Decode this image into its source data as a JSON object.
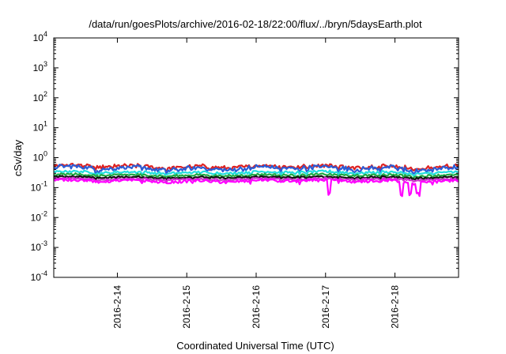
{
  "chart_data": {
    "type": "line",
    "title": "/data/run/goesPlots/archive/2016-02-18/22:00/flux/../bryn/5daysEarth.plot",
    "xlabel": "Coordinated Universal Time (UTC)",
    "ylabel": "cSv/day",
    "yscale": "log",
    "ylim": [
      0.0001,
      10000
    ],
    "xlim": [
      "2016-02-13 02:00",
      "2016-02-18 22:00"
    ],
    "grid": false,
    "y_ticks": [
      {
        "base": "10",
        "exp": "-4"
      },
      {
        "base": "10",
        "exp": "-3"
      },
      {
        "base": "10",
        "exp": "-2"
      },
      {
        "base": "10",
        "exp": "-1"
      },
      {
        "base": "10",
        "exp": "0"
      },
      {
        "base": "10",
        "exp": "1"
      },
      {
        "base": "10",
        "exp": "2"
      },
      {
        "base": "10",
        "exp": "3"
      },
      {
        "base": "10",
        "exp": "4"
      }
    ],
    "x_ticks": [
      "2016-2-14",
      "2016-2-15",
      "2016-2-16",
      "2016-2-17",
      "2016-2-18"
    ],
    "series": [
      {
        "color": "#dd2222",
        "level": 0.5,
        "noise": 0.18,
        "dip": false
      },
      {
        "color": "#2b5dd6",
        "level": 0.44,
        "noise": 0.22,
        "dip": false
      },
      {
        "color": "#22dddd",
        "level": 0.32,
        "noise": 0.12,
        "dip": false
      },
      {
        "color": "#22aa44",
        "level": 0.26,
        "noise": 0.1,
        "dip": false
      },
      {
        "color": "#111111",
        "level": 0.22,
        "noise": 0.08,
        "dip": false
      },
      {
        "color": "#cc33cc",
        "level": 0.19,
        "noise": 0.09,
        "dip": false
      },
      {
        "color": "#ff00ff",
        "level": 0.165,
        "noise": 0.14,
        "dip": true
      }
    ]
  }
}
